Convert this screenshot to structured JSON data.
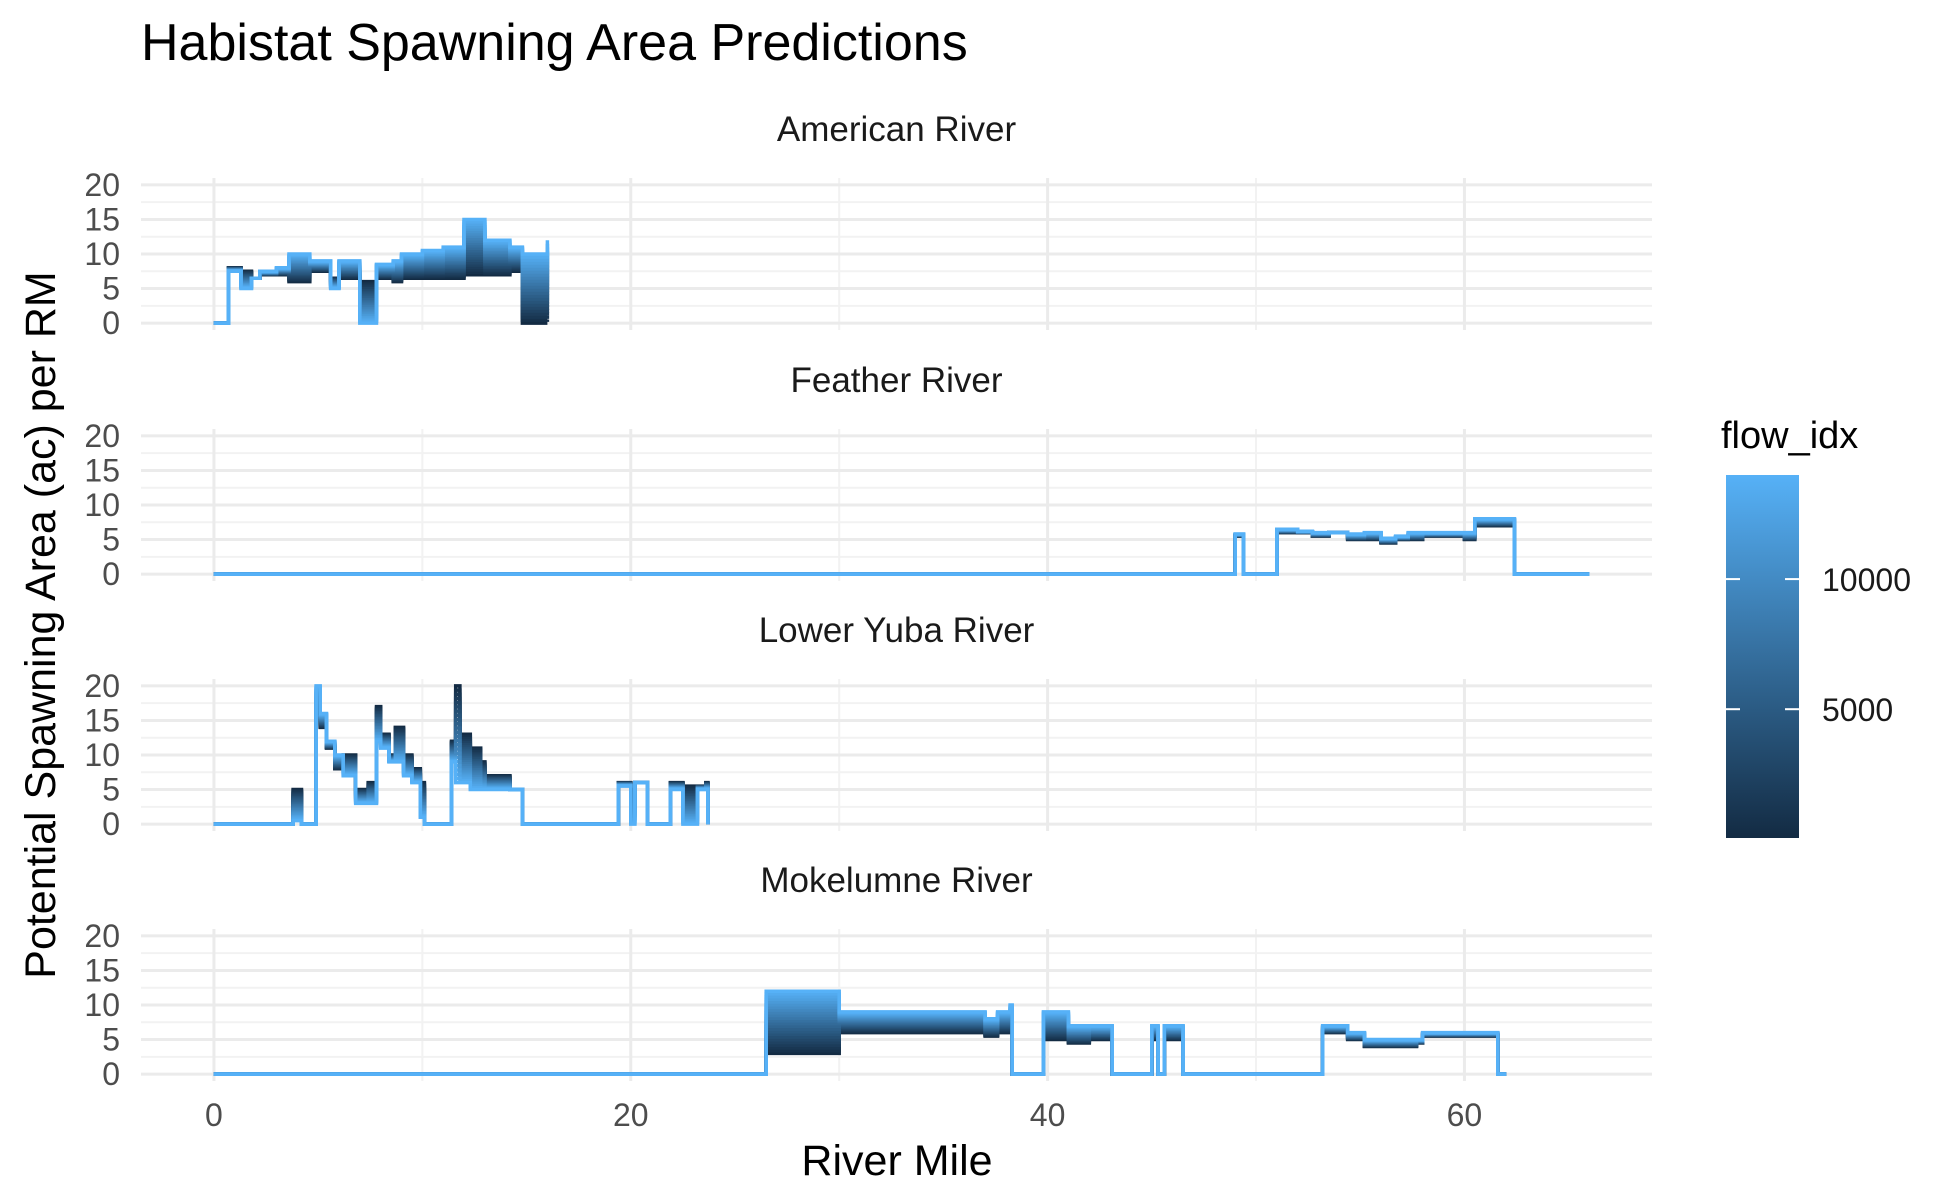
{
  "chart_data": {
    "type": "line",
    "title": "Habistat Spawning Area Predictions",
    "xlabel": "River Mile",
    "ylabel": "Potential Spawning Area (ac) per RM",
    "xlim": [
      -3.5,
      69
    ],
    "ylim": [
      -1,
      21
    ],
    "x_ticks": [
      0,
      20,
      40,
      60
    ],
    "y_ticks": [
      0,
      5,
      10,
      15,
      20
    ],
    "x_tick_labels": [
      "0",
      "20",
      "40",
      "60"
    ],
    "y_tick_labels": [
      "0",
      "5",
      "10",
      "15",
      "20"
    ],
    "grid": true,
    "legend": {
      "title": "flow_idx",
      "position": "right",
      "range": [
        50,
        14000
      ],
      "ticks": [
        5000,
        10000
      ],
      "tick_labels": [
        "5000",
        "10000"
      ],
      "low_color": "#132b43",
      "high_color": "#56b1f7"
    },
    "colors": {
      "low": "#132b43",
      "high": "#56b1f7",
      "grid": "#ebebeb"
    },
    "panels": [
      {
        "name": "American River",
        "low_flow_profile": [
          [
            0,
            0
          ],
          [
            0.7,
            8
          ],
          [
            1.3,
            7.5
          ],
          [
            1.8,
            6.5
          ],
          [
            2.2,
            7
          ],
          [
            3,
            7
          ],
          [
            3.6,
            6
          ],
          [
            4.6,
            7.5
          ],
          [
            5.6,
            6.5
          ],
          [
            6,
            6.5
          ],
          [
            7,
            6
          ],
          [
            7.8,
            6.5
          ],
          [
            8.6,
            6
          ],
          [
            9,
            6.5
          ],
          [
            10,
            6.5
          ],
          [
            11,
            6.5
          ],
          [
            12,
            7
          ],
          [
            13,
            7
          ],
          [
            14.2,
            7.5
          ],
          [
            14.8,
            0
          ],
          [
            16,
            0
          ]
        ],
        "high_flow_profile": [
          [
            0,
            0
          ],
          [
            0.7,
            7.5
          ],
          [
            1.3,
            5
          ],
          [
            1.8,
            6.5
          ],
          [
            2.2,
            7.5
          ],
          [
            3,
            8
          ],
          [
            3.6,
            10
          ],
          [
            4.3,
            9
          ],
          [
            4.6,
            5
          ],
          [
            5.2,
            9
          ],
          [
            5.6,
            0
          ],
          [
            6,
            8.5
          ],
          [
            6.7,
            9
          ],
          [
            7.3,
            10
          ],
          [
            7.9,
            10.5
          ],
          [
            8.5,
            11
          ],
          [
            8.8,
            15
          ],
          [
            9.8,
            12
          ],
          [
            10.7,
            11
          ],
          [
            11,
            10
          ],
          [
            11.8,
            12
          ],
          [
            12.8,
            11.5
          ],
          [
            13.2,
            11
          ],
          [
            14.6,
            0
          ],
          [
            16,
            0
          ]
        ]
      },
      {
        "name": "Feather River",
        "low_flow_profile": [
          [
            0,
            0
          ],
          [
            48.8,
            0
          ],
          [
            49,
            5.5
          ],
          [
            49.4,
            0
          ],
          [
            50.8,
            0
          ],
          [
            51,
            6
          ],
          [
            52,
            6
          ],
          [
            52.7,
            5.5
          ],
          [
            53.5,
            6
          ],
          [
            54.4,
            5
          ],
          [
            55.2,
            5
          ],
          [
            56,
            4.5
          ],
          [
            56.7,
            5
          ],
          [
            57.3,
            5
          ],
          [
            58,
            5.5
          ],
          [
            59,
            5.5
          ],
          [
            60,
            5
          ],
          [
            60.5,
            7
          ],
          [
            62,
            7
          ],
          [
            62.4,
            0
          ],
          [
            66,
            0
          ]
        ],
        "high_flow_profile": [
          [
            0,
            0
          ],
          [
            48.8,
            0
          ],
          [
            49,
            5.8
          ],
          [
            49.4,
            0
          ],
          [
            50.8,
            0
          ],
          [
            51,
            6.5
          ],
          [
            52,
            6.2
          ],
          [
            52.7,
            6
          ],
          [
            53.5,
            6
          ],
          [
            54.4,
            5.8
          ],
          [
            55.2,
            6
          ],
          [
            56,
            5.2
          ],
          [
            56.7,
            5.5
          ],
          [
            57.3,
            6
          ],
          [
            58,
            6
          ],
          [
            59,
            6
          ],
          [
            60,
            6
          ],
          [
            60.5,
            8
          ],
          [
            62,
            8
          ],
          [
            62.4,
            0
          ],
          [
            66,
            0
          ]
        ]
      },
      {
        "name": "Lower Yuba River",
        "low_flow_profile": [
          [
            0,
            0
          ],
          [
            3.6,
            0
          ],
          [
            3.8,
            5
          ],
          [
            4.2,
            0
          ],
          [
            4.8,
            0
          ],
          [
            4.9,
            16
          ],
          [
            5.1,
            14
          ],
          [
            5.4,
            11
          ],
          [
            5.8,
            8
          ],
          [
            6.2,
            10
          ],
          [
            6.8,
            5
          ],
          [
            7.2,
            5
          ],
          [
            7.4,
            6
          ],
          [
            7.8,
            17
          ],
          [
            8,
            13
          ],
          [
            8.4,
            10
          ],
          [
            8.7,
            14
          ],
          [
            9.1,
            10
          ],
          [
            9.5,
            8
          ],
          [
            9.9,
            6
          ],
          [
            10.1,
            0
          ],
          [
            11.3,
            0
          ],
          [
            11.4,
            12
          ],
          [
            11.6,
            20
          ],
          [
            11.8,
            13
          ],
          [
            12.3,
            11
          ],
          [
            12.8,
            9
          ],
          [
            13,
            7
          ],
          [
            13.6,
            7
          ],
          [
            14.2,
            5
          ],
          [
            14.8,
            0
          ],
          [
            19.2,
            0
          ],
          [
            19.4,
            6
          ],
          [
            20,
            5
          ],
          [
            20.2,
            6
          ],
          [
            20.6,
            6
          ],
          [
            20.8,
            0
          ],
          [
            21.7,
            0
          ],
          [
            21.9,
            6
          ],
          [
            22.5,
            5.5
          ],
          [
            23.2,
            5.5
          ],
          [
            23.6,
            6
          ],
          [
            23.7,
            0
          ]
        ],
        "high_flow_profile": [
          [
            0,
            0
          ],
          [
            3.6,
            0
          ],
          [
            3.8,
            0.5
          ],
          [
            4.2,
            0
          ],
          [
            4.8,
            0
          ],
          [
            4.9,
            20
          ],
          [
            5.1,
            16
          ],
          [
            5.4,
            12
          ],
          [
            5.8,
            10
          ],
          [
            6.2,
            7
          ],
          [
            6.8,
            3
          ],
          [
            7.2,
            3
          ],
          [
            7.4,
            3
          ],
          [
            7.8,
            12
          ],
          [
            8,
            11
          ],
          [
            8.4,
            9
          ],
          [
            8.7,
            9
          ],
          [
            9.1,
            7
          ],
          [
            9.5,
            6
          ],
          [
            9.9,
            1
          ],
          [
            10.1,
            0
          ],
          [
            11.3,
            0
          ],
          [
            11.4,
            9
          ],
          [
            11.6,
            6
          ],
          [
            11.8,
            6
          ],
          [
            12.3,
            5
          ],
          [
            12.8,
            5
          ],
          [
            13,
            5
          ],
          [
            13.6,
            5
          ],
          [
            14.2,
            5
          ],
          [
            14.8,
            0
          ],
          [
            19.2,
            0
          ],
          [
            19.4,
            5.5
          ],
          [
            20,
            0
          ],
          [
            20.2,
            6
          ],
          [
            20.6,
            6
          ],
          [
            20.8,
            0
          ],
          [
            21.7,
            0
          ],
          [
            21.9,
            5
          ],
          [
            22.5,
            0
          ],
          [
            23.2,
            5
          ],
          [
            23.6,
            5
          ],
          [
            23.7,
            0
          ]
        ]
      },
      {
        "name": "Mokelumne River",
        "low_flow_profile": [
          [
            0,
            0
          ],
          [
            26.3,
            0
          ],
          [
            26.5,
            3
          ],
          [
            30,
            6
          ],
          [
            35.8,
            6
          ],
          [
            37,
            5.5
          ],
          [
            37.6,
            6
          ],
          [
            38.2,
            6
          ],
          [
            38.3,
            0
          ],
          [
            39.7,
            0
          ],
          [
            39.8,
            5
          ],
          [
            41,
            4.5
          ],
          [
            42,
            5
          ],
          [
            42.8,
            5
          ],
          [
            43.1,
            0
          ],
          [
            44.8,
            0
          ],
          [
            45,
            5
          ],
          [
            45.3,
            0
          ],
          [
            45.6,
            5
          ],
          [
            46.3,
            5
          ],
          [
            46.5,
            0
          ],
          [
            53,
            0
          ],
          [
            53.2,
            6
          ],
          [
            54,
            6
          ],
          [
            54.4,
            5
          ],
          [
            55.2,
            4
          ],
          [
            56.1,
            4
          ],
          [
            57.7,
            4.5
          ],
          [
            58,
            5.5
          ],
          [
            61.4,
            5.5
          ],
          [
            61.6,
            0
          ],
          [
            62,
            0
          ]
        ],
        "high_flow_profile": [
          [
            0,
            0
          ],
          [
            26.3,
            0
          ],
          [
            26.5,
            12
          ],
          [
            30,
            9
          ],
          [
            35.8,
            9
          ],
          [
            37,
            8
          ],
          [
            37.6,
            9
          ],
          [
            38.2,
            10
          ],
          [
            38.3,
            0
          ],
          [
            39.7,
            0
          ],
          [
            39.8,
            9
          ],
          [
            41,
            7
          ],
          [
            42,
            7
          ],
          [
            42.8,
            7
          ],
          [
            43.1,
            0
          ],
          [
            44.8,
            0
          ],
          [
            45,
            7
          ],
          [
            45.3,
            0
          ],
          [
            45.6,
            7
          ],
          [
            46.3,
            7
          ],
          [
            46.5,
            0
          ],
          [
            53,
            0
          ],
          [
            53.2,
            7
          ],
          [
            54,
            7
          ],
          [
            54.4,
            6
          ],
          [
            55.2,
            5
          ],
          [
            56.1,
            5
          ],
          [
            57.7,
            5
          ],
          [
            58,
            6
          ],
          [
            61.4,
            6
          ],
          [
            61.6,
            0
          ],
          [
            62,
            0
          ]
        ]
      }
    ]
  }
}
